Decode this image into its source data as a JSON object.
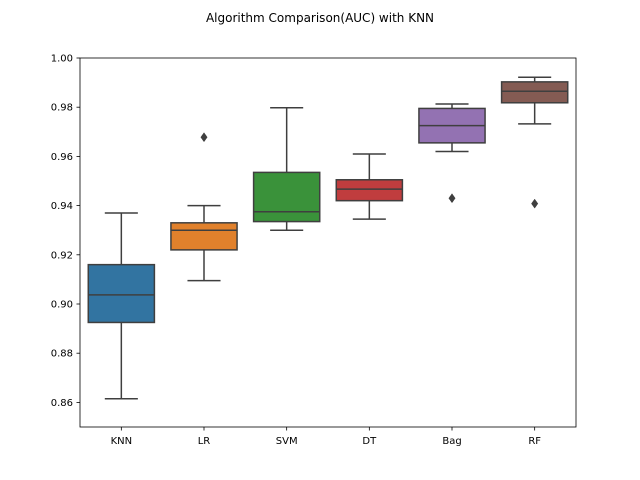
{
  "chart_data": {
    "type": "box",
    "title": "Algorithm Comparison(AUC) with KNN",
    "xlabel": "",
    "ylabel": "",
    "ylim": [
      0.85,
      1.0
    ],
    "yticks": [
      0.86,
      0.88,
      0.9,
      0.92,
      0.94,
      0.96,
      0.98,
      1.0
    ],
    "ytick_labels": [
      "0.86",
      "0.88",
      "0.90",
      "0.92",
      "0.94",
      "0.96",
      "0.98",
      "1.00"
    ],
    "grid": false,
    "categories": [
      "KNN",
      "LR",
      "SVM",
      "DT",
      "Bag",
      "RF"
    ],
    "boxes": [
      {
        "category": "KNN",
        "whisker_low": 0.8615,
        "q1": 0.8925,
        "median": 0.9037,
        "q3": 0.916,
        "whisker_high": 0.937,
        "outliers": [],
        "color": "#3274a1"
      },
      {
        "category": "LR",
        "whisker_low": 0.9095,
        "q1": 0.922,
        "median": 0.93,
        "q3": 0.933,
        "whisker_high": 0.94,
        "outliers": [
          0.9678
        ],
        "color": "#e1812c"
      },
      {
        "category": "SVM",
        "whisker_low": 0.93,
        "q1": 0.9335,
        "median": 0.9375,
        "q3": 0.9535,
        "whisker_high": 0.9798,
        "outliers": [],
        "color": "#3a923a"
      },
      {
        "category": "DT",
        "whisker_low": 0.9345,
        "q1": 0.942,
        "median": 0.9467,
        "q3": 0.9505,
        "whisker_high": 0.961,
        "outliers": [],
        "color": "#c03d3e"
      },
      {
        "category": "Bag",
        "whisker_low": 0.962,
        "q1": 0.9655,
        "median": 0.9725,
        "q3": 0.9795,
        "whisker_high": 0.9813,
        "outliers": [
          0.943
        ],
        "color": "#9372b2"
      },
      {
        "category": "RF",
        "whisker_low": 0.9732,
        "q1": 0.9818,
        "median": 0.9865,
        "q3": 0.9903,
        "whisker_high": 0.9922,
        "outliers": [
          0.9408
        ],
        "color": "#845b53"
      }
    ]
  }
}
